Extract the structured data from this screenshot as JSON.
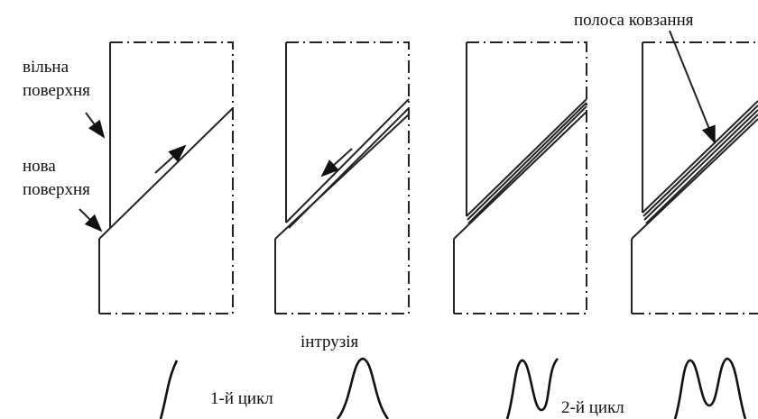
{
  "labels": {
    "free_surface": [
      "вільна",
      "поверхня"
    ],
    "new_surface": [
      "нова",
      "поверхня"
    ],
    "slip_band": "полоса ковзання",
    "intrusion": "інтрузія",
    "cycle_1": "1-й цикл",
    "cycle_2": "2-й цикл"
  }
}
